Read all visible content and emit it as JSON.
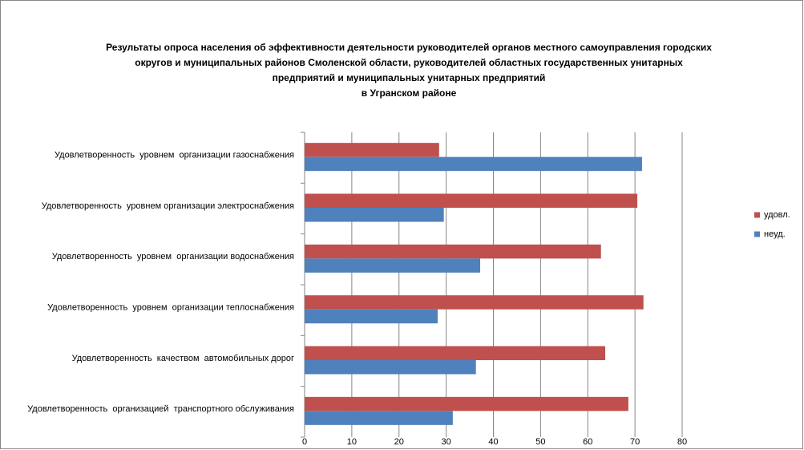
{
  "chart_data": {
    "type": "hbar",
    "title": [
      "Результаты опроса населения об эффективности деятельности руководителей органов местного самоуправления городских",
      "округов и муниципальных районов Смоленской области, руководителей областных государственных унитарных",
      "предприятий и муниципальных унитарных предприятий",
      "в Угранском районе"
    ],
    "categories": [
      "Удовлетворенность  уровнем  организации газоснабжения",
      "Удовлетворенность  уровнем организации электроснабжения",
      "Удовлетворенность  уровнем  организации водоснабжения",
      "Удовлетворенность  уровнем  организации теплоснабжения",
      "Удовлетворенность  качеством  автомобильных дорог",
      "Удовлетворенность  организацией  транспортного обслуживания"
    ],
    "series": [
      {
        "name": "удовл.",
        "color": "#c0504d",
        "values": [
          28.5,
          70.5,
          62.8,
          71.8,
          63.7,
          68.6
        ]
      },
      {
        "name": "неуд.",
        "color": "#4f81bd",
        "values": [
          71.5,
          29.5,
          37.2,
          28.2,
          36.3,
          31.4
        ]
      }
    ],
    "xlim": [
      0,
      80
    ],
    "xticks": [
      0,
      10,
      20,
      30,
      40,
      50,
      60,
      70,
      80
    ],
    "grid": true,
    "legend": "right"
  }
}
